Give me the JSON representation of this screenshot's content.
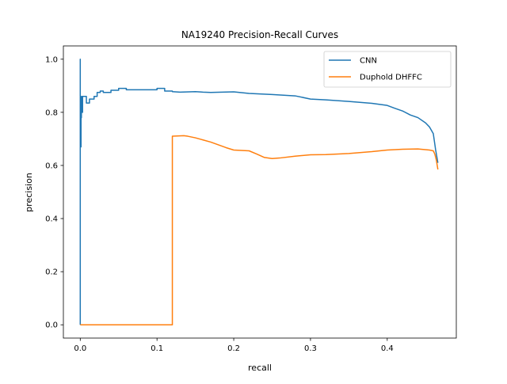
{
  "chart_data": {
    "type": "line",
    "title": "NA19240 Precision-Recall Curves",
    "xlabel": "recall",
    "ylabel": "precision",
    "xlim": [
      -0.022,
      0.49
    ],
    "ylim": [
      -0.05,
      1.05
    ],
    "xticks": [
      0.0,
      0.1,
      0.2,
      0.3,
      0.4
    ],
    "xtick_labels": [
      "0.0",
      "0.1",
      "0.2",
      "0.3",
      "0.4"
    ],
    "yticks": [
      0.0,
      0.2,
      0.4,
      0.6,
      0.8,
      1.0
    ],
    "ytick_labels": [
      "0.0",
      "0.2",
      "0.4",
      "0.6",
      "0.8",
      "1.0"
    ],
    "grid": false,
    "legend_position": "upper right",
    "series": [
      {
        "name": "CNN",
        "color": "#1f77b4",
        "x": [
          0.0,
          0.0,
          0.0,
          0.0005,
          0.0005,
          0.001,
          0.001,
          0.0015,
          0.0015,
          0.002,
          0.002,
          0.003,
          0.003,
          0.005,
          0.005,
          0.008,
          0.008,
          0.012,
          0.012,
          0.018,
          0.018,
          0.022,
          0.022,
          0.026,
          0.026,
          0.03,
          0.03,
          0.04,
          0.04,
          0.05,
          0.05,
          0.06,
          0.06,
          0.09,
          0.09,
          0.1,
          0.1,
          0.11,
          0.11,
          0.12,
          0.12,
          0.13,
          0.15,
          0.16,
          0.17,
          0.2,
          0.22,
          0.25,
          0.28,
          0.3,
          0.32,
          0.35,
          0.38,
          0.4,
          0.41,
          0.42,
          0.43,
          0.44,
          0.45,
          0.455,
          0.46,
          0.463,
          0.466
        ],
        "y": [
          0.0,
          1.0,
          0.8,
          0.8,
          0.67,
          0.67,
          0.78,
          0.78,
          0.86,
          0.86,
          0.8,
          0.8,
          0.86,
          0.86,
          0.86,
          0.86,
          0.835,
          0.835,
          0.85,
          0.85,
          0.86,
          0.86,
          0.875,
          0.875,
          0.88,
          0.88,
          0.875,
          0.875,
          0.883,
          0.883,
          0.89,
          0.89,
          0.885,
          0.885,
          0.885,
          0.885,
          0.89,
          0.89,
          0.88,
          0.88,
          0.878,
          0.876,
          0.878,
          0.876,
          0.875,
          0.877,
          0.871,
          0.867,
          0.862,
          0.85,
          0.847,
          0.841,
          0.834,
          0.826,
          0.815,
          0.805,
          0.79,
          0.78,
          0.76,
          0.745,
          0.72,
          0.66,
          0.61
        ]
      },
      {
        "name": "Duphold DHFFC",
        "color": "#ff7f0e",
        "x": [
          0.0,
          0.12,
          0.12,
          0.135,
          0.14,
          0.15,
          0.16,
          0.17,
          0.19,
          0.2,
          0.22,
          0.23,
          0.24,
          0.25,
          0.26,
          0.28,
          0.3,
          0.32,
          0.35,
          0.38,
          0.4,
          0.42,
          0.44,
          0.455,
          0.46,
          0.462,
          0.464,
          0.466
        ],
        "y": [
          0.0,
          0.0,
          0.71,
          0.712,
          0.71,
          0.704,
          0.696,
          0.688,
          0.667,
          0.658,
          0.655,
          0.643,
          0.63,
          0.626,
          0.628,
          0.635,
          0.64,
          0.641,
          0.645,
          0.652,
          0.658,
          0.661,
          0.662,
          0.658,
          0.655,
          0.643,
          0.62,
          0.585
        ]
      }
    ]
  }
}
